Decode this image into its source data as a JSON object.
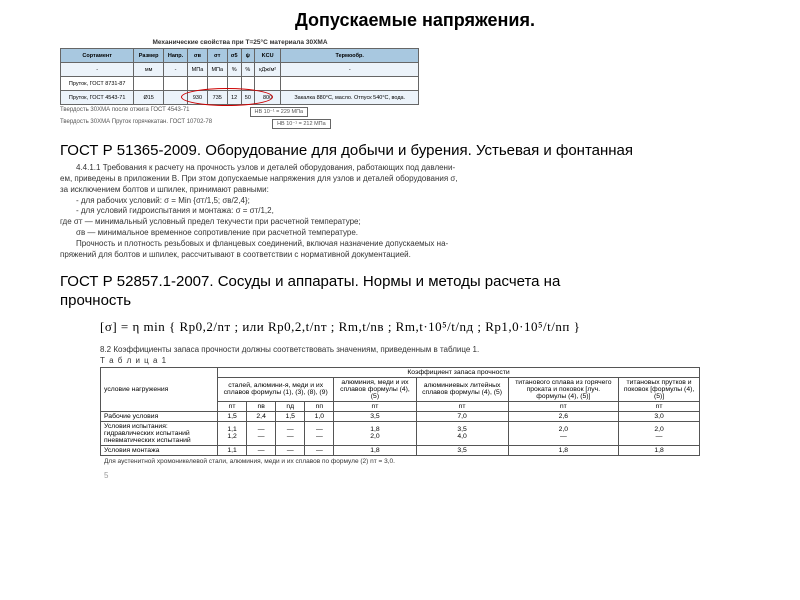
{
  "title": "Допускаемые напряжения.",
  "table1": {
    "caption": "Механические свойства при T=25°C материала 30ХМА",
    "headers": [
      "Сортамент",
      "Размер",
      "Напр.",
      "σв",
      "σт",
      "σ5",
      "ψ",
      "KCU",
      "Термообр."
    ],
    "units": [
      "-",
      "мм",
      "-",
      "МПа",
      "МПа",
      "%",
      "%",
      "кДж/м²",
      "-"
    ],
    "rows": [
      [
        "Пруток, ГОСТ 8731-87",
        "",
        "",
        "",
        "",
        "",
        "",
        "",
        ""
      ],
      [
        "Пруток, ГОСТ 4543-71",
        "Ø15",
        "",
        "930",
        "735",
        "12",
        "50",
        "800",
        "Закалка 880°C, масло. Отпуск 540°C, вода."
      ]
    ],
    "hardness_l1": "Твердость   30ХМА   после отжига           ГОСТ 4543-71",
    "hardness_l2": "Твердость   30ХМА   Пруток горячекатан.   ГОСТ 10702-78",
    "hardness_b1": "HB 10⁻¹ = 229  МПа",
    "hardness_b2": "HB 10⁻¹ = 212  МПа"
  },
  "gost1": "ГОСТ Р 51365-2009. Оборудование для добычи и бурения. Устьевая и фонтанная",
  "para1": {
    "l1": "4.4.1.1 Требования к расчету на прочность узлов и деталей оборудования, работающих под давлени-",
    "l2": "ем, приведены в приложении В. При этом допускаемые напряжения для узлов и деталей оборудования σ,",
    "l3": "за исключением болтов и шпилек, принимают равными:",
    "l4": "- для рабочих условий: σ = Min {σт/1,5; σв/2,4};",
    "l5": "- для условий гидроиспытания и монтажа: σ = σт/1,2,",
    "l6": "где σт — минимальный условный предел текучести при расчетной температуре;",
    "l7": "σв — минимальное временное сопротивление при расчетной температуре.",
    "l8": "Прочность и плотность резьбовых и фланцевых соединений, включая назначение допускаемых на-",
    "l9": "пряжений для болтов и шпилек, рассчитывают в соответствии с нормативной документацией."
  },
  "gost2a": "ГОСТ Р 52857.1-2007. Сосуды и аппараты. Нормы и методы расчета на",
  "gost2b": "прочность",
  "formula_txt": "[σ] = η min { Rр0,2/nт ; или Rр0,2,t/nт ; Rm,t/nв ; Rm,t·10⁵/t/nд ; Rр1,0·10⁵/t/nп }",
  "cap82": "8.2 Коэффициенты запаса прочности должны соответствовать значениям, приведенным в таблице 1.",
  "tbl2cap": "Т а б л и ц а 1",
  "tbl2": {
    "grp_head": "Коэффициент запаса прочности",
    "cond_head": "условие нагружения",
    "col_heads": [
      "сталей, алюмини-я, меди и их сплавов формулы (1), (3), (8), (9)",
      "алюминия, меди и их сплавов формулы (4), (5)",
      "алюминиевых литейных сплавов формулы (4), (5)",
      "титанового сплава из горячего проката и поковок [луч. формулы (4), (5)]",
      "титановых прутков и поковок [формулы (4),(5)]"
    ],
    "sym_row": [
      "nт",
      "nв",
      "nд",
      "nп",
      "nт",
      "nт",
      "nт",
      "nт"
    ],
    "rows": [
      {
        "c": "Рабочие условия",
        "v": [
          "1,5",
          "2,4",
          "1,5",
          "1,0",
          "3,5",
          "7,0",
          "2,6",
          "3,0"
        ]
      },
      {
        "c": "Условия испытания:\nгидравлических испытаний\nпневматических испытаний",
        "v": [
          "1,1\n1,2",
          "—\n—",
          "—\n—",
          "—\n—",
          "1,8\n2,0",
          "3,5\n4,0",
          "2,0\n—",
          "2,0\n—"
        ]
      },
      {
        "c": "Условия монтажа",
        "v": [
          "1,1",
          "—",
          "—",
          "—",
          "1,8",
          "3,5",
          "1,8",
          "1,8"
        ]
      }
    ],
    "footnote": "Для аустенитной хромоникелевой стали, алюминия, меди и их сплавов по формуле (2) nт = 3,0."
  },
  "pagenum": "5"
}
